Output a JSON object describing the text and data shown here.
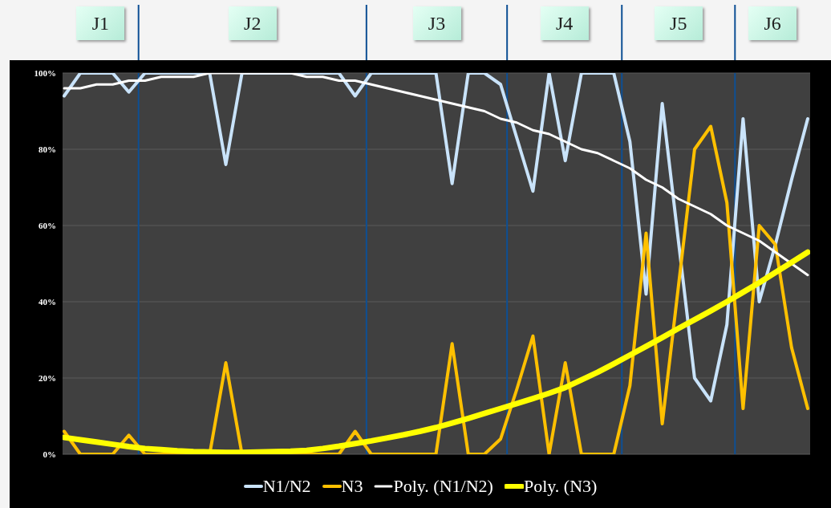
{
  "chart_data": {
    "type": "line",
    "categories": [
      null,
      null,
      null,
      null,
      null,
      null,
      null,
      null,
      null,
      null,
      null,
      null,
      null,
      null,
      null,
      null,
      null,
      null,
      null,
      null,
      null,
      null,
      null,
      null,
      null,
      null,
      null,
      null,
      null,
      null,
      null,
      null,
      null,
      null,
      null,
      null,
      null,
      null,
      null,
      null,
      null,
      null,
      null,
      null,
      null,
      null,
      null
    ],
    "series": [
      {
        "name": "N1/N2",
        "color": "#c9e3fa",
        "values": [
          94,
          100,
          100,
          100,
          95,
          100,
          100,
          100,
          100,
          100,
          76,
          100,
          100,
          100,
          100,
          100,
          100,
          100,
          94,
          100,
          100,
          100,
          100,
          100,
          71,
          100,
          100,
          97,
          83,
          69,
          100,
          77,
          100,
          100,
          100,
          82,
          42,
          92,
          56,
          20,
          14,
          34,
          88,
          40,
          55,
          72,
          88
        ]
      },
      {
        "name": "N3",
        "color": "#ffc000",
        "values": [
          6,
          0,
          0,
          0,
          5,
          0,
          0,
          0,
          0,
          0,
          24,
          0,
          0,
          0,
          0,
          0,
          0,
          0,
          6,
          0,
          0,
          0,
          0,
          0,
          29,
          0,
          0,
          4,
          17,
          31,
          0,
          24,
          0,
          0,
          0,
          18,
          58,
          8,
          44,
          80,
          86,
          66,
          12,
          60,
          55,
          28,
          12
        ]
      },
      {
        "name": "Poly. (N1/N2)",
        "color": "#ffffff",
        "values": [
          96,
          96,
          97,
          97,
          98,
          98,
          99,
          99,
          99,
          100,
          100,
          100,
          100,
          100,
          100,
          99,
          99,
          98,
          98,
          97,
          96,
          95,
          94,
          93,
          92,
          91,
          90,
          88,
          87,
          85,
          84,
          82,
          80,
          79,
          77,
          75,
          72,
          70,
          67,
          65,
          63,
          60,
          58,
          56,
          53,
          50,
          47
        ]
      },
      {
        "name": "Poly. (N3)",
        "color": "#ffff00",
        "values": [
          4.4,
          3.8,
          3.2,
          2.6,
          2,
          1.5,
          1.2,
          0.9,
          0.7,
          0.6,
          0.5,
          0.5,
          0.6,
          0.7,
          0.8,
          1,
          1.5,
          2.1,
          2.8,
          3.5,
          4.3,
          5.1,
          6,
          7,
          8.2,
          9.4,
          10.7,
          12,
          13.3,
          14.6,
          16,
          17.5,
          19.5,
          21.5,
          23.7,
          26,
          28.3,
          30.6,
          33,
          35.3,
          37.6,
          40,
          42.5,
          45,
          47.7,
          50.3,
          53
        ]
      }
    ],
    "ylim": [
      0,
      100
    ],
    "yticks": [
      {
        "value": 0,
        "label": "0%"
      },
      {
        "value": 20,
        "label": "20%"
      },
      {
        "value": 40,
        "label": "40%"
      },
      {
        "value": 60,
        "label": "60%"
      },
      {
        "value": 80,
        "label": "80%"
      },
      {
        "value": 100,
        "label": "100%"
      }
    ],
    "tick_labels": "y",
    "grid": "y",
    "legend": "bottom",
    "marker": "none",
    "line_style": "solid",
    "annotations": [
      "J1",
      "J2",
      "J3",
      "J4",
      "J5",
      "J6"
    ]
  }
}
